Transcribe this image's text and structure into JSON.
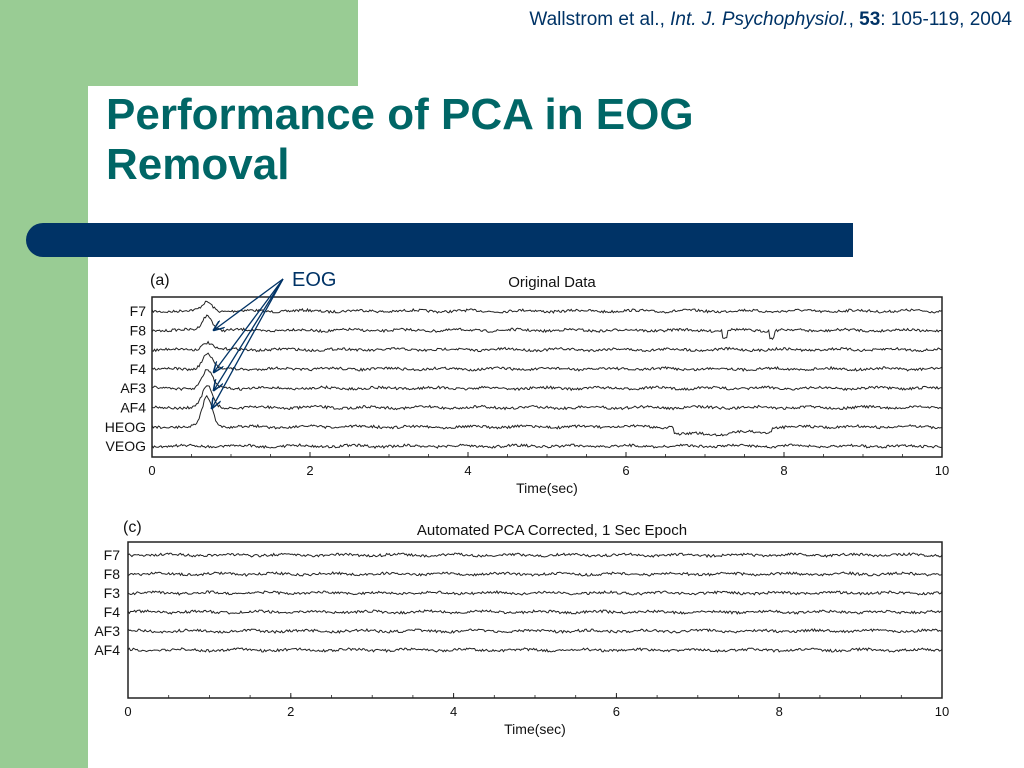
{
  "slide": {
    "citation_authors": "Wallstrom et al., ",
    "citation_journal": "Int. J. Psychophysiol.",
    "citation_sep": ", ",
    "citation_volume": "53",
    "citation_pages": ": 105-119, 2004",
    "title": "Performance of PCA in EOG Removal",
    "annotation": "EOG"
  },
  "colors": {
    "title": "#006666",
    "band": "#003366",
    "sidebar": "#99cc94",
    "annotation": "#003366"
  },
  "chart_data": [
    {
      "type": "line",
      "panel_label": "(a)",
      "title": "Original Data",
      "xlabel": "Time(sec)",
      "xlim": [
        0,
        10
      ],
      "xticks": [
        "0",
        "2",
        "4",
        "6",
        "8",
        "10"
      ],
      "channels": [
        "F7",
        "F8",
        "F3",
        "F4",
        "AF3",
        "AF4",
        "HEOG",
        "VEOG"
      ],
      "events": [
        {
          "channel": "F7",
          "time": 0.7,
          "kind": "blink",
          "amplitude": 0.3
        },
        {
          "channel": "F8",
          "time": 0.7,
          "kind": "blink",
          "amplitude": 0.5
        },
        {
          "channel": "F3",
          "time": 0.7,
          "kind": "blink",
          "amplitude": 0.25
        },
        {
          "channel": "F4",
          "time": 0.7,
          "kind": "blink",
          "amplitude": 0.5
        },
        {
          "channel": "AF3",
          "time": 0.7,
          "kind": "blink",
          "amplitude": 0.6
        },
        {
          "channel": "AF4",
          "time": 0.7,
          "kind": "blink",
          "amplitude": 0.7
        },
        {
          "channel": "HEOG",
          "time": 0.7,
          "kind": "blink",
          "amplitude": 1.0
        },
        {
          "channel": "HEOG",
          "time": 6.6,
          "kind": "step",
          "amplitude": -0.4,
          "end": 7.3
        },
        {
          "channel": "HEOG",
          "time": 7.3,
          "kind": "step",
          "amplitude": -0.3,
          "end": 7.85
        },
        {
          "channel": "F8",
          "time": 7.25,
          "kind": "spike",
          "amplitude": -0.4
        },
        {
          "channel": "F8",
          "time": 7.85,
          "kind": "spike",
          "amplitude": -0.4
        }
      ]
    },
    {
      "type": "line",
      "panel_label": "(c)",
      "title": "Automated PCA Corrected, 1 Sec Epoch",
      "xlabel": "Time(sec)",
      "xlim": [
        0,
        10
      ],
      "xticks": [
        "0",
        "2",
        "4",
        "6",
        "8",
        "10"
      ],
      "channels": [
        "F7",
        "F8",
        "F3",
        "F4",
        "AF3",
        "AF4"
      ],
      "events": []
    }
  ]
}
